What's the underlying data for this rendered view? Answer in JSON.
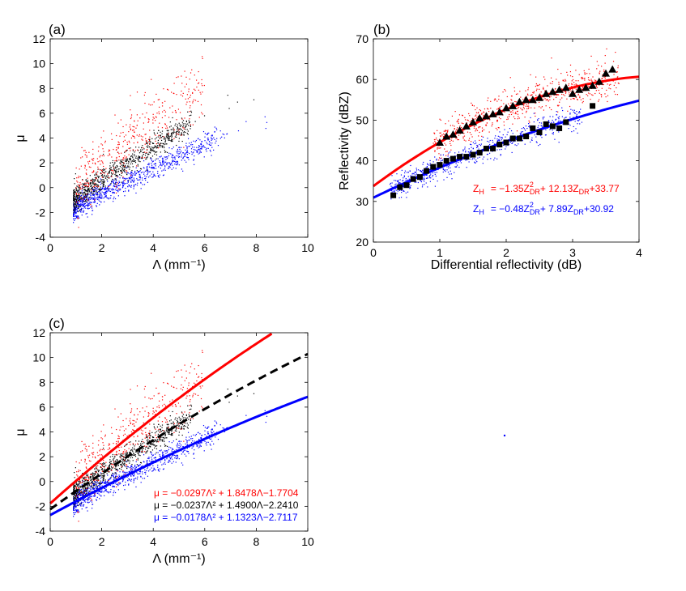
{
  "chart_data": [
    {
      "type": "scatter",
      "panel_label": "(a)",
      "xlabel": "Λ (mm⁻¹)",
      "ylabel": "μ",
      "xlim": [
        0,
        10
      ],
      "ylim": [
        -4,
        12
      ],
      "xticks": [
        0,
        2,
        4,
        6,
        8,
        10
      ],
      "yticks": [
        -4,
        -2,
        0,
        2,
        4,
        6,
        8,
        10,
        12
      ],
      "series": [
        {
          "color": "#ff0000",
          "values_note_range": "x 0.9-6.3, y -1.2-11"
        },
        {
          "color": "#000000"
        },
        {
          "color": "#0000ff"
        }
      ],
      "grid": false
    },
    {
      "type": "scatter",
      "panel_label": "(b)",
      "xlabel": "Differential reflectivity (dB)",
      "ylabel": "Reflectivity (dBZ)",
      "xlim": [
        0,
        4
      ],
      "ylim": [
        20,
        70
      ],
      "xticks": [
        0,
        1,
        2,
        3,
        4
      ],
      "yticks": [
        20,
        30,
        40,
        50,
        60,
        70
      ],
      "triangles": {
        "color": "#000000",
        "x": [
          1.0,
          1.1,
          1.2,
          1.3,
          1.4,
          1.5,
          1.6,
          1.7,
          1.8,
          1.9,
          2.0,
          2.1,
          2.2,
          2.3,
          2.4,
          2.5,
          2.6,
          2.7,
          2.8,
          2.9,
          3.0,
          3.1,
          3.2,
          3.3,
          3.4,
          3.5,
          3.6
        ],
        "y": [
          44.5,
          46,
          46.5,
          47.5,
          48.5,
          49.5,
          50.5,
          51,
          51.5,
          52,
          53,
          53.5,
          54.5,
          55,
          55,
          55.5,
          56.5,
          57,
          57.5,
          58,
          56.5,
          57.5,
          58,
          58.5,
          59.5,
          61.5,
          62.5
        ]
      },
      "squares": {
        "color": "#000000",
        "x": [
          0.3,
          0.4,
          0.5,
          0.6,
          0.7,
          0.8,
          0.9,
          1.0,
          1.1,
          1.2,
          1.3,
          1.4,
          1.5,
          1.6,
          1.7,
          1.8,
          1.9,
          2.0,
          2.1,
          2.2,
          2.3,
          2.4,
          2.5,
          2.6,
          2.7,
          2.8,
          2.9,
          3.3
        ],
        "y": [
          31.5,
          33.5,
          34,
          35.5,
          36,
          37.5,
          38.5,
          39,
          40,
          40.5,
          41,
          41,
          41.5,
          42,
          43,
          43,
          44,
          44.5,
          45.5,
          45.5,
          46,
          48,
          47,
          49,
          48.5,
          48,
          49.5,
          53.5
        ]
      },
      "fits": [
        {
          "color": "#ff0000",
          "coef": [
            -1.35,
            12.13,
            33.77
          ]
        },
        {
          "color": "#0000ff",
          "coef": [
            -0.48,
            7.89,
            30.92
          ]
        }
      ],
      "eqn_red": {
        "z": "Z",
        "zsub": "H",
        "p1": "= −1.35Z",
        "sup": "2",
        "sub1": "DR",
        "p2": "+ 12.13Z",
        "sub2": "DR",
        "p3": "+33.77"
      },
      "eqn_blue": {
        "z": "Z",
        "zsub": "H",
        "p1": "= −0.48Z",
        "sup": "2",
        "sub1": "DR",
        "p2": "+ 7.89Z",
        "sub2": "DR",
        "p3": "+30.92"
      },
      "grid": false
    },
    {
      "type": "scatter",
      "panel_label": "(c)",
      "xlabel": "Λ (mm⁻¹)",
      "ylabel": "μ",
      "xlim": [
        0,
        10
      ],
      "ylim": [
        -4,
        12
      ],
      "xticks": [
        0,
        2,
        4,
        6,
        8,
        10
      ],
      "yticks": [
        -4,
        -2,
        0,
        2,
        4,
        6,
        8,
        10,
        12
      ],
      "fits": [
        {
          "color": "#ff0000",
          "dash": false,
          "coef": [
            -0.0297,
            1.8478,
            -1.7704
          ]
        },
        {
          "color": "#000000",
          "dash": true,
          "coef": [
            -0.0237,
            1.49,
            -2.241
          ]
        },
        {
          "color": "#0000ff",
          "dash": false,
          "coef": [
            -0.0178,
            1.1323,
            -2.7117
          ]
        }
      ],
      "eqn_lines": [
        {
          "color": "#ff0000",
          "text": "μ = −0.0297Λ² + 1.8478Λ−1.7704"
        },
        {
          "color": "#000000",
          "text": "μ = −0.0237Λ² + 1.4900Λ−2.2410"
        },
        {
          "color": "#0000ff",
          "text": "μ = −0.0178Λ² + 1.1323Λ−2.7117"
        }
      ],
      "grid": false
    }
  ]
}
